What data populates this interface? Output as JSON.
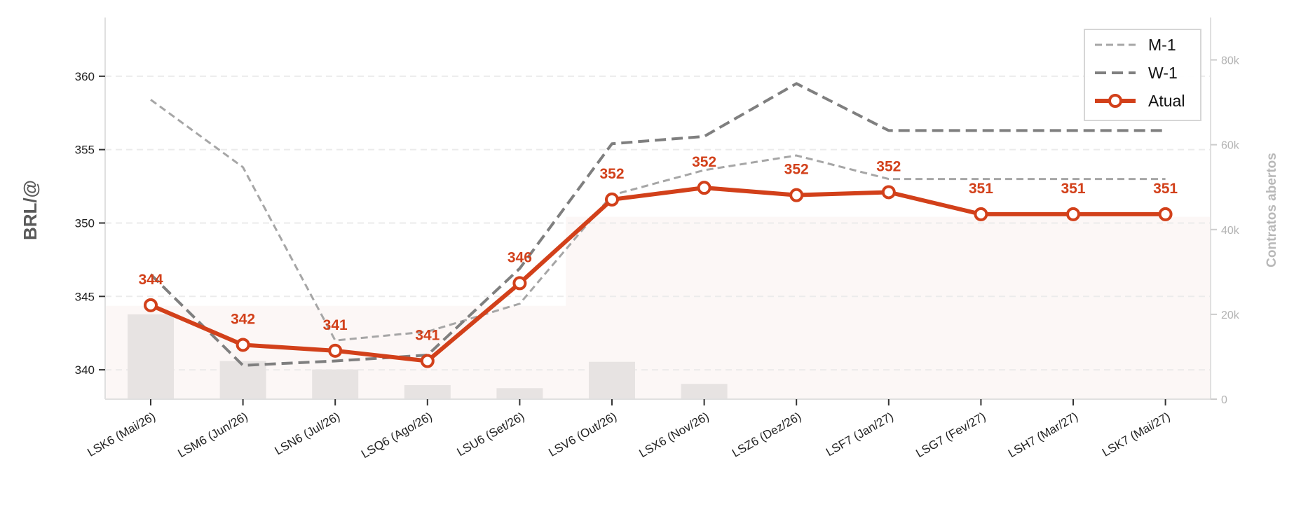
{
  "chart_data": {
    "type": "line",
    "categories": [
      "LSK6 (Mai/26)",
      "LSM6 (Jun/26)",
      "LSN6 (Jul/26)",
      "LSQ6 (Ago/26)",
      "LSU6 (Set/26)",
      "LSV6 (Out/26)",
      "LSX6 (Nov/26)",
      "LSZ6 (Dez/26)",
      "LSF7 (Jan/27)",
      "LSG7 (Fev/27)",
      "LSH7 (Mar/27)",
      "LSK7 (Mai/27)"
    ],
    "ylabel": "BRL/@",
    "y2label": "Contratos abertos",
    "ylim": [
      338,
      364
    ],
    "y2lim": [
      0,
      90000
    ],
    "yticks": [
      340,
      345,
      350,
      355,
      360
    ],
    "y2ticks": [
      0,
      20000,
      40000,
      60000,
      80000
    ],
    "y2tick_labels": [
      "0",
      "20k",
      "40k",
      "60k",
      "80k"
    ],
    "grid": "horizontal dashed",
    "legend_position": "top-right",
    "series": [
      {
        "name": "M-1",
        "style": "dashed-light",
        "color": "#a6a6a6",
        "values": [
          358.4,
          353.8,
          342.0,
          342.6,
          344.5,
          351.9,
          353.6,
          354.6,
          353.0,
          353.0,
          353.0,
          353.0
        ]
      },
      {
        "name": "W-1",
        "style": "dashed-dark",
        "color": "#7f7f7f",
        "values": [
          346.5,
          340.3,
          340.6,
          341.0,
          346.9,
          355.4,
          355.9,
          359.5,
          356.3,
          356.3,
          356.3,
          356.3
        ]
      },
      {
        "name": "Atual",
        "style": "solid-marker",
        "color": "#d2401a",
        "values": [
          344.4,
          341.7,
          341.3,
          340.6,
          345.9,
          351.6,
          352.4,
          351.9,
          352.1,
          350.6,
          350.6,
          350.6
        ],
        "labels": [
          "344",
          "342",
          "341",
          "341",
          "346",
          "352",
          "352",
          "352",
          "352",
          "351",
          "351",
          "351"
        ]
      }
    ],
    "open_interest": [
      20000,
      9000,
      7000,
      3300,
      2600,
      8800,
      3600,
      0,
      0,
      0,
      0,
      0
    ],
    "total_area": [
      22000,
      22000,
      22000,
      22000,
      22000,
      43000,
      43000,
      43000,
      43000,
      43000,
      43000,
      43000
    ]
  },
  "colors": {
    "atual": "#d2401a",
    "m1": "#a6a6a6",
    "w1": "#7f7f7f",
    "bars": "#e7e3e2",
    "area": "#fcf7f6"
  }
}
